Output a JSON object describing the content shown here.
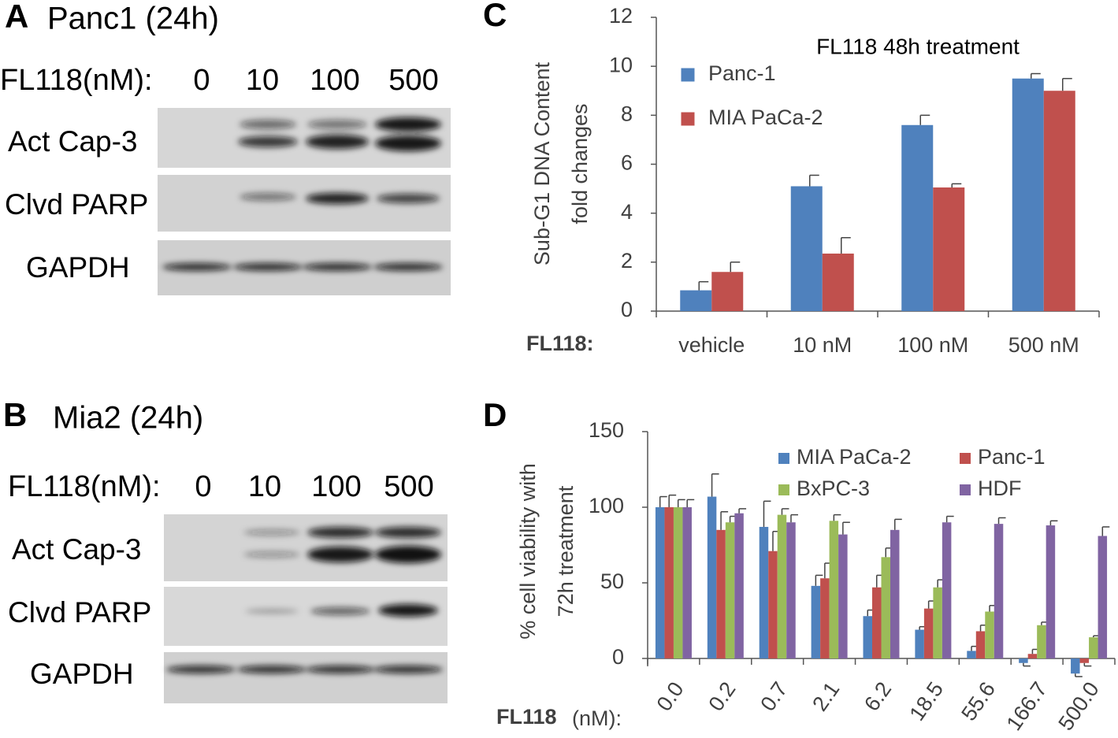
{
  "panels": [
    {
      "letter": "A",
      "title": "Panc1 (24h)",
      "dose_header": "FL118(nM):",
      "doses": [
        "0",
        "10",
        "100",
        "500"
      ],
      "rows": [
        "Act Cap-3",
        "Clvd PARP",
        "GAPDH"
      ]
    },
    {
      "letter": "B",
      "title": "Mia2 (24h)",
      "dose_header": "FL118(nM):",
      "doses": [
        "0",
        "10",
        "100",
        "500"
      ],
      "rows": [
        "Act Cap-3",
        "Clvd PARP",
        "GAPDH"
      ]
    }
  ],
  "chart_data": [
    {
      "type": "bar",
      "letter": "C",
      "title": "FL118 48h treatment",
      "y_label": [
        "Sub-G1 DNA Content",
        "fold changes"
      ],
      "x_prefix": "FL118:",
      "categories": [
        "vehicle",
        "10 nM",
        "100 nM",
        "500 nM"
      ],
      "series": [
        {
          "name": "Panc-1",
          "color": "#4f81bd",
          "values": [
            0.85,
            5.1,
            7.6,
            9.5
          ],
          "errors": [
            0.35,
            0.45,
            0.4,
            0.2
          ]
        },
        {
          "name": "MIA PaCa-2",
          "color": "#c0504d",
          "values": [
            1.6,
            2.35,
            5.05,
            9.0
          ],
          "errors": [
            0.4,
            0.65,
            0.15,
            0.5
          ]
        }
      ],
      "ylim": [
        0,
        12
      ],
      "yticks": [
        0,
        2,
        4,
        6,
        8,
        10,
        12
      ],
      "legend": "upper left"
    },
    {
      "type": "bar",
      "letter": "D",
      "y_label": [
        "% cell viability with",
        "72h treatment"
      ],
      "x_prefix": "FL118",
      "x_unit": "(nM):",
      "categories": [
        "0.0",
        "0.2",
        "0.7",
        "2.1",
        "6.2",
        "18.5",
        "55.6",
        "166.7",
        "500.0"
      ],
      "series": [
        {
          "name": "MIA PaCa-2",
          "color": "#4f81bd",
          "values": [
            100,
            107,
            87,
            48,
            28,
            19,
            5,
            -3,
            -10
          ],
          "errors": [
            7,
            15,
            17,
            7,
            4,
            2,
            3,
            2,
            2
          ]
        },
        {
          "name": "Panc-1",
          "color": "#c0504d",
          "values": [
            100,
            85,
            71,
            53,
            47,
            33,
            18,
            3,
            -3
          ],
          "errors": [
            8,
            12,
            13,
            10,
            8,
            5,
            4,
            3,
            2
          ]
        },
        {
          "name": "BxPC-3",
          "color": "#9bbb59",
          "values": [
            100,
            90,
            95,
            91,
            67,
            47,
            31,
            22,
            14
          ],
          "errors": [
            5,
            4,
            4,
            4,
            6,
            5,
            4,
            2,
            1
          ]
        },
        {
          "name": "HDF",
          "color": "#8064a2",
          "values": [
            100,
            96,
            90,
            82,
            85,
            90,
            89,
            88,
            81
          ],
          "errors": [
            5,
            3,
            5,
            8,
            7,
            4,
            4,
            3,
            6
          ]
        }
      ],
      "ylim": [
        0,
        150
      ],
      "yticks": [
        0,
        50,
        100,
        150
      ],
      "legend": "upper right"
    }
  ]
}
